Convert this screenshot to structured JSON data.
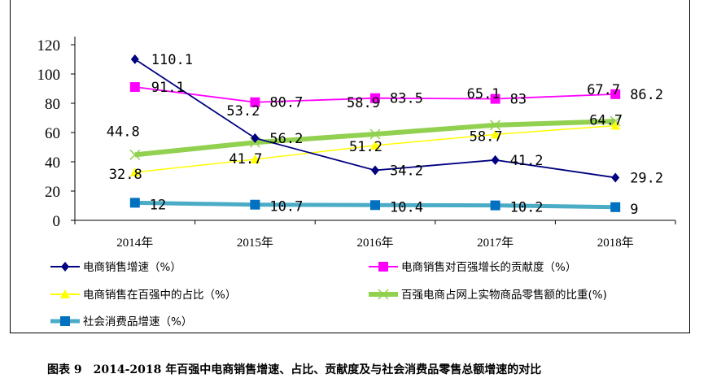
{
  "chart_data": {
    "type": "line",
    "title": "图表 9　2014-2018 年百强中电商销售增速、占比、贡献度及与社会消费品零售总额增速的对比",
    "categories": [
      "2014年",
      "2015年",
      "2016年",
      "2017年",
      "2018年"
    ],
    "ylim": [
      0,
      120
    ],
    "yticks": [
      0,
      20,
      40,
      60,
      80,
      100,
      120
    ],
    "grid": false,
    "legend_position": "bottom",
    "series": [
      {
        "name": "电商销售增速（%）",
        "color": "#000080",
        "marker": "diamond",
        "values": [
          110.1,
          56.2,
          34.2,
          41.2,
          29.2
        ],
        "labels": [
          "110.1",
          "56.2",
          "34.2",
          "41.2",
          "29.2"
        ]
      },
      {
        "name": "电商销售对百强增长的贡献度（%）",
        "color": "#FF00FF",
        "marker": "square",
        "values": [
          91.1,
          80.7,
          83.5,
          83,
          86.2
        ],
        "labels": [
          "91.1",
          "80.7",
          "83.5",
          "83",
          "86.2"
        ]
      },
      {
        "name": "电商销售在百强中的占比（%）",
        "color": "#FFFF00",
        "marker": "triangle",
        "values": [
          32.8,
          41.7,
          51.2,
          58.7,
          64.7
        ],
        "labels": [
          "32.8",
          "41.7",
          "51.2",
          "58.7",
          "64.7"
        ]
      },
      {
        "name": "百强电商占网上实物商品零售额的比重(%)",
        "color": "#92D050",
        "marker": "x",
        "values": [
          44.8,
          53.2,
          58.9,
          65.1,
          67.7
        ],
        "labels": [
          "44.8",
          "53.2",
          "58.9",
          "65.1",
          "67.7"
        ]
      },
      {
        "name": "社会消费品增速（%）",
        "color": "#4BACC6",
        "marker": "square",
        "markerColor": "#0070C0",
        "values": [
          12,
          10.7,
          10.4,
          10.2,
          9
        ],
        "labels": [
          "12",
          "10.7",
          "10.4",
          "10.2",
          "9"
        ]
      }
    ]
  }
}
